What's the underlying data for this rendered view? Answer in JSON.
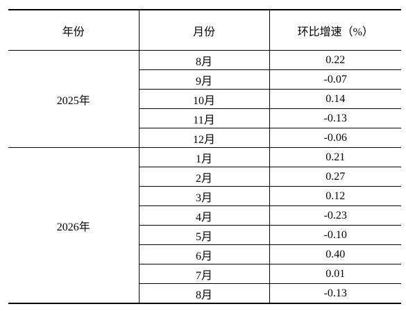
{
  "table": {
    "header": [
      "年份",
      "月份",
      "环比增速（%）"
    ],
    "groups": [
      {
        "year": "2025年",
        "rows": [
          [
            "8月",
            "0.22"
          ],
          [
            "9月",
            "-0.07"
          ],
          [
            "10月",
            "0.14"
          ],
          [
            "11月",
            "-0.13"
          ],
          [
            "12月",
            "-0.06"
          ]
        ]
      },
      {
        "year": "2026年",
        "rows": [
          [
            "1月",
            "0.21"
          ],
          [
            "2月",
            "0.27"
          ],
          [
            "3月",
            "0.12"
          ],
          [
            "4月",
            "-0.23"
          ],
          [
            "5月",
            "-0.10"
          ],
          [
            "6月",
            "0.40"
          ],
          [
            "7月",
            "0.01"
          ],
          [
            "8月",
            "-0.13"
          ]
        ]
      }
    ]
  }
}
